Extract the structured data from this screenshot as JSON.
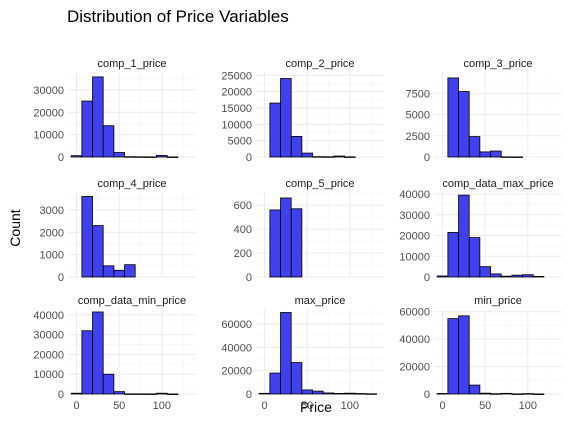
{
  "chart_data": {
    "type": "bar",
    "title": "Distribution of Price Variables",
    "xlabel": "Price",
    "ylabel": "Count",
    "bar_color": "#4040ee",
    "bar_outline": "#000000",
    "grid": true,
    "bin_width": 12.5,
    "xlim": [
      -10,
      140
    ],
    "x_ticks": [
      0,
      50,
      100
    ],
    "panels": [
      {
        "name": "comp_1_price",
        "ylim": [
          0,
          38000
        ],
        "y_ticks": [
          0,
          10000,
          20000,
          30000
        ],
        "bins": [
          {
            "x": 0,
            "count": 600
          },
          {
            "x": 12.5,
            "count": 25000
          },
          {
            "x": 25,
            "count": 35800
          },
          {
            "x": 37.5,
            "count": 14000
          },
          {
            "x": 50,
            "count": 2000
          },
          {
            "x": 62.5,
            "count": 150
          },
          {
            "x": 75,
            "count": 100
          },
          {
            "x": 87.5,
            "count": 60
          },
          {
            "x": 100,
            "count": 700
          },
          {
            "x": 112.5,
            "count": 40
          }
        ]
      },
      {
        "name": "comp_2_price",
        "ylim": [
          0,
          26000
        ],
        "y_ticks": [
          0,
          5000,
          10000,
          15000,
          20000,
          25000
        ],
        "bins": [
          {
            "x": 12.5,
            "count": 16500
          },
          {
            "x": 25,
            "count": 24000
          },
          {
            "x": 37.5,
            "count": 6300
          },
          {
            "x": 50,
            "count": 1200
          },
          {
            "x": 62.5,
            "count": 120
          },
          {
            "x": 75,
            "count": 80
          },
          {
            "x": 87.5,
            "count": 300
          },
          {
            "x": 100,
            "count": 50
          }
        ]
      },
      {
        "name": "comp_3_price",
        "ylim": [
          0,
          10000
        ],
        "y_ticks": [
          0,
          2500,
          5000,
          7500
        ],
        "bins": [
          {
            "x": 12.5,
            "count": 9300
          },
          {
            "x": 25,
            "count": 7700
          },
          {
            "x": 37.5,
            "count": 2400
          },
          {
            "x": 50,
            "count": 600
          },
          {
            "x": 62.5,
            "count": 700
          },
          {
            "x": 75,
            "count": 20
          },
          {
            "x": 87.5,
            "count": 10
          }
        ]
      },
      {
        "name": "comp_4_price",
        "ylim": [
          0,
          3800
        ],
        "y_ticks": [
          0,
          1000,
          2000,
          3000
        ],
        "bins": [
          {
            "x": 12.5,
            "count": 3600
          },
          {
            "x": 25,
            "count": 2300
          },
          {
            "x": 37.5,
            "count": 500
          },
          {
            "x": 50,
            "count": 300
          },
          {
            "x": 62.5,
            "count": 550
          }
        ]
      },
      {
        "name": "comp_5_price",
        "ylim": [
          0,
          710
        ],
        "y_ticks": [
          0,
          200,
          400,
          600
        ],
        "bins": [
          {
            "x": 12.5,
            "count": 560
          },
          {
            "x": 25,
            "count": 660
          },
          {
            "x": 37.5,
            "count": 570
          }
        ]
      },
      {
        "name": "comp_data_max_price",
        "ylim": [
          0,
          41000
        ],
        "y_ticks": [
          0,
          10000,
          20000,
          30000,
          40000
        ],
        "bins": [
          {
            "x": 0,
            "count": 500
          },
          {
            "x": 12.5,
            "count": 21500
          },
          {
            "x": 25,
            "count": 39500
          },
          {
            "x": 37.5,
            "count": 19000
          },
          {
            "x": 50,
            "count": 5000
          },
          {
            "x": 62.5,
            "count": 1500
          },
          {
            "x": 75,
            "count": 400
          },
          {
            "x": 87.5,
            "count": 900
          },
          {
            "x": 100,
            "count": 1100
          },
          {
            "x": 112.5,
            "count": 300
          }
        ]
      },
      {
        "name": "comp_data_min_price",
        "ylim": [
          0,
          43000
        ],
        "y_ticks": [
          0,
          10000,
          20000,
          30000,
          40000
        ],
        "bins": [
          {
            "x": 0,
            "count": 400
          },
          {
            "x": 12.5,
            "count": 32000
          },
          {
            "x": 25,
            "count": 41500
          },
          {
            "x": 37.5,
            "count": 10000
          },
          {
            "x": 50,
            "count": 1200
          },
          {
            "x": 62.5,
            "count": 100
          },
          {
            "x": 75,
            "count": 80
          },
          {
            "x": 87.5,
            "count": 60
          },
          {
            "x": 100,
            "count": 400
          },
          {
            "x": 112.5,
            "count": 30
          }
        ]
      },
      {
        "name": "max_price",
        "ylim": [
          0,
          73000
        ],
        "y_ticks": [
          0,
          20000,
          40000,
          60000
        ],
        "bins": [
          {
            "x": 0,
            "count": 600
          },
          {
            "x": 12.5,
            "count": 18000
          },
          {
            "x": 25,
            "count": 70000
          },
          {
            "x": 37.5,
            "count": 27000
          },
          {
            "x": 50,
            "count": 3500
          },
          {
            "x": 62.5,
            "count": 2500
          },
          {
            "x": 75,
            "count": 900
          },
          {
            "x": 87.5,
            "count": 500
          },
          {
            "x": 100,
            "count": 700
          },
          {
            "x": 112.5,
            "count": 400
          },
          {
            "x": 125,
            "count": 200
          }
        ]
      },
      {
        "name": "min_price",
        "ylim": [
          0,
          62000
        ],
        "y_ticks": [
          0,
          20000,
          40000,
          60000
        ],
        "bins": [
          {
            "x": 0,
            "count": 400
          },
          {
            "x": 12.5,
            "count": 55000
          },
          {
            "x": 25,
            "count": 57000
          },
          {
            "x": 37.5,
            "count": 6500
          },
          {
            "x": 50,
            "count": 600
          },
          {
            "x": 62.5,
            "count": 200
          },
          {
            "x": 75,
            "count": 500
          },
          {
            "x": 87.5,
            "count": 100
          },
          {
            "x": 100,
            "count": 300
          },
          {
            "x": 112.5,
            "count": 60
          }
        ]
      }
    ]
  }
}
